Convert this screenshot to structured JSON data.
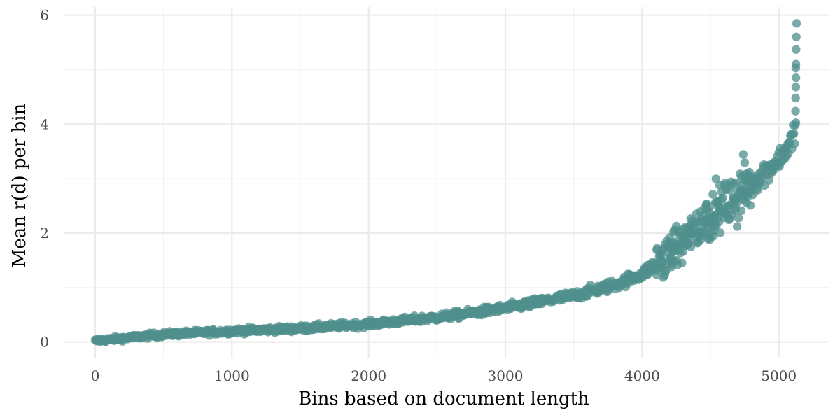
{
  "chart_data": {
    "type": "scatter",
    "title": "",
    "xlabel": "Bins based on document length",
    "ylabel": "Mean r(d) per bin",
    "xlim": [
      -225,
      5365
    ],
    "ylim": [
      -0.3,
      6.15
    ],
    "x_ticks": [
      0,
      1000,
      2000,
      3000,
      4000,
      5000
    ],
    "x_tick_labels": [
      "0",
      "1000",
      "2000",
      "3000",
      "4000",
      "5000"
    ],
    "y_ticks": [
      0,
      2,
      4,
      6
    ],
    "y_tick_labels": [
      "0",
      "2",
      "4",
      "6"
    ],
    "grid": true,
    "legend": "none",
    "point_color": "#4f8f8c",
    "point_opacity": 0.75,
    "n_bins": 5130,
    "trend": {
      "description": "mean r(d) rises smoothly with bin index, then steeply after ~4000",
      "x": [
        0,
        500,
        1000,
        1500,
        2000,
        2500,
        3000,
        3500,
        3800,
        4000,
        4200,
        4400,
        4600,
        4800,
        5000,
        5100,
        5130
      ],
      "y": [
        0.02,
        0.14,
        0.2,
        0.25,
        0.33,
        0.45,
        0.62,
        0.85,
        1.05,
        1.25,
        1.6,
        2.1,
        2.5,
        2.9,
        3.35,
        3.7,
        4.1
      ]
    },
    "outliers": [
      {
        "x": 5130,
        "y": 5.85
      },
      {
        "x": 5128,
        "y": 5.6
      },
      {
        "x": 5126,
        "y": 5.37
      },
      {
        "x": 5125,
        "y": 5.1
      },
      {
        "x": 5124,
        "y": 5.03
      },
      {
        "x": 5125,
        "y": 4.85
      },
      {
        "x": 5124,
        "y": 4.68
      },
      {
        "x": 5123,
        "y": 4.48
      },
      {
        "x": 5122,
        "y": 4.24
      }
    ]
  }
}
